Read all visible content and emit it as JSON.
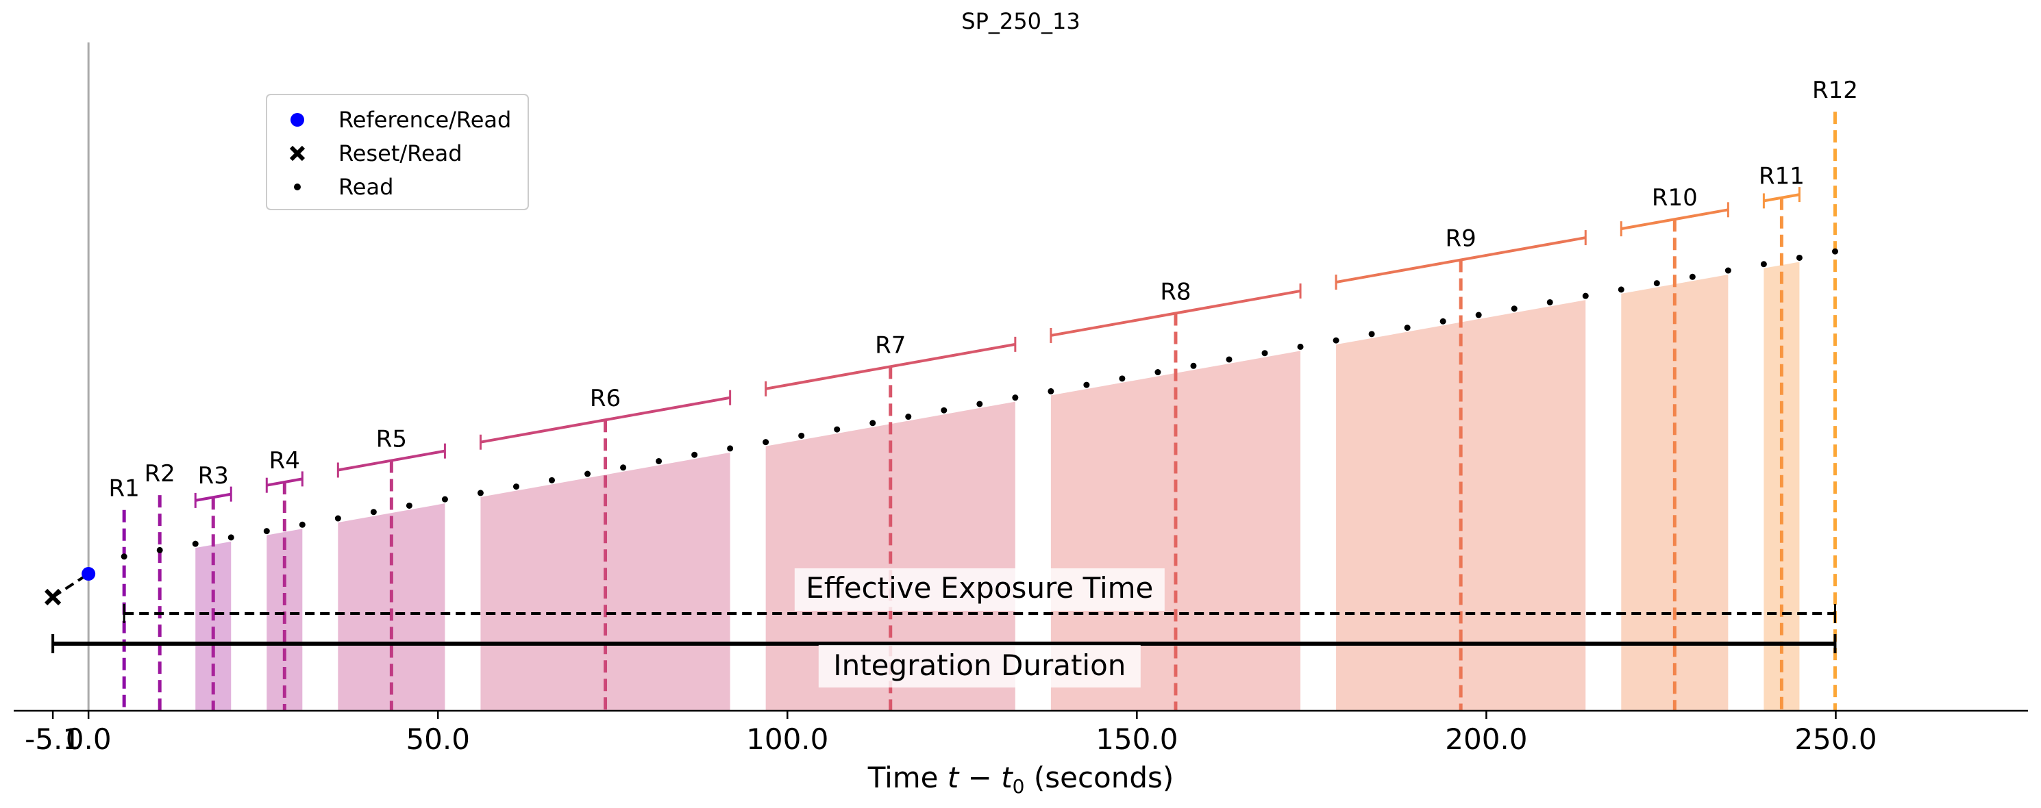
{
  "chart_data": {
    "type": "scatter",
    "title": "SP_250_13",
    "xlabel_prefix": "Time ",
    "xlabel_math": "t − t",
    "xlabel_sub": "0",
    "xlabel_suffix": " (seconds)",
    "xlim": [
      -10.7,
      277.5
    ],
    "x_ticks": [
      -5.1,
      0.0,
      50.0,
      100.0,
      150.0,
      200.0,
      250.0
    ],
    "x_tick_labels": [
      "-5.1",
      "0.0",
      "50.0",
      "100.0",
      "150.0",
      "200.0",
      "250.0"
    ],
    "t_reset": -5.1,
    "t_reference": 0.0,
    "read_interval": 5.1,
    "legend": {
      "placement": "upper-left",
      "entries": [
        {
          "marker": "circle",
          "label": "Reference/Read"
        },
        {
          "marker": "x",
          "label": "Reset/Read"
        },
        {
          "marker": "dot",
          "label": "Read"
        }
      ]
    },
    "resultants": [
      {
        "label": "R1",
        "start": 5.1,
        "end": 5.1,
        "n_reads": 1,
        "color": "#8e0ca5"
      },
      {
        "label": "R2",
        "start": 10.2,
        "end": 10.2,
        "n_reads": 1,
        "color": "#9c179e"
      },
      {
        "label": "R3",
        "start": 15.3,
        "end": 20.4,
        "n_reads": 2,
        "color": "#a8229a"
      },
      {
        "label": "R4",
        "start": 25.5,
        "end": 30.6,
        "n_reads": 2,
        "color": "#b12a90"
      },
      {
        "label": "R5",
        "start": 35.7,
        "end": 51.0,
        "n_reads": 4,
        "color": "#c03a83"
      },
      {
        "label": "R6",
        "start": 56.1,
        "end": 91.8,
        "n_reads": 8,
        "color": "#cc4778"
      },
      {
        "label": "R7",
        "start": 96.9,
        "end": 132.6,
        "n_reads": 8,
        "color": "#d8576b"
      },
      {
        "label": "R8",
        "start": 137.7,
        "end": 173.4,
        "n_reads": 8,
        "color": "#e26561"
      },
      {
        "label": "R9",
        "start": 178.5,
        "end": 214.2,
        "n_reads": 8,
        "color": "#eb7655"
      },
      {
        "label": "R10",
        "start": 219.3,
        "end": 234.6,
        "n_reads": 4,
        "color": "#f2844b"
      },
      {
        "label": "R11",
        "start": 239.7,
        "end": 244.8,
        "n_reads": 2,
        "color": "#f89540"
      },
      {
        "label": "R12",
        "start": 249.9,
        "end": 249.9,
        "n_reads": 1,
        "color": "#fca636"
      }
    ],
    "effective_exposure": {
      "label": "Effective Exposure Time",
      "start": 5.1,
      "end": 249.9,
      "style": "dashed"
    },
    "integration_duration": {
      "label": "Integration Duration",
      "start": -5.1,
      "end": 249.9,
      "style": "solid"
    },
    "grid": false
  }
}
